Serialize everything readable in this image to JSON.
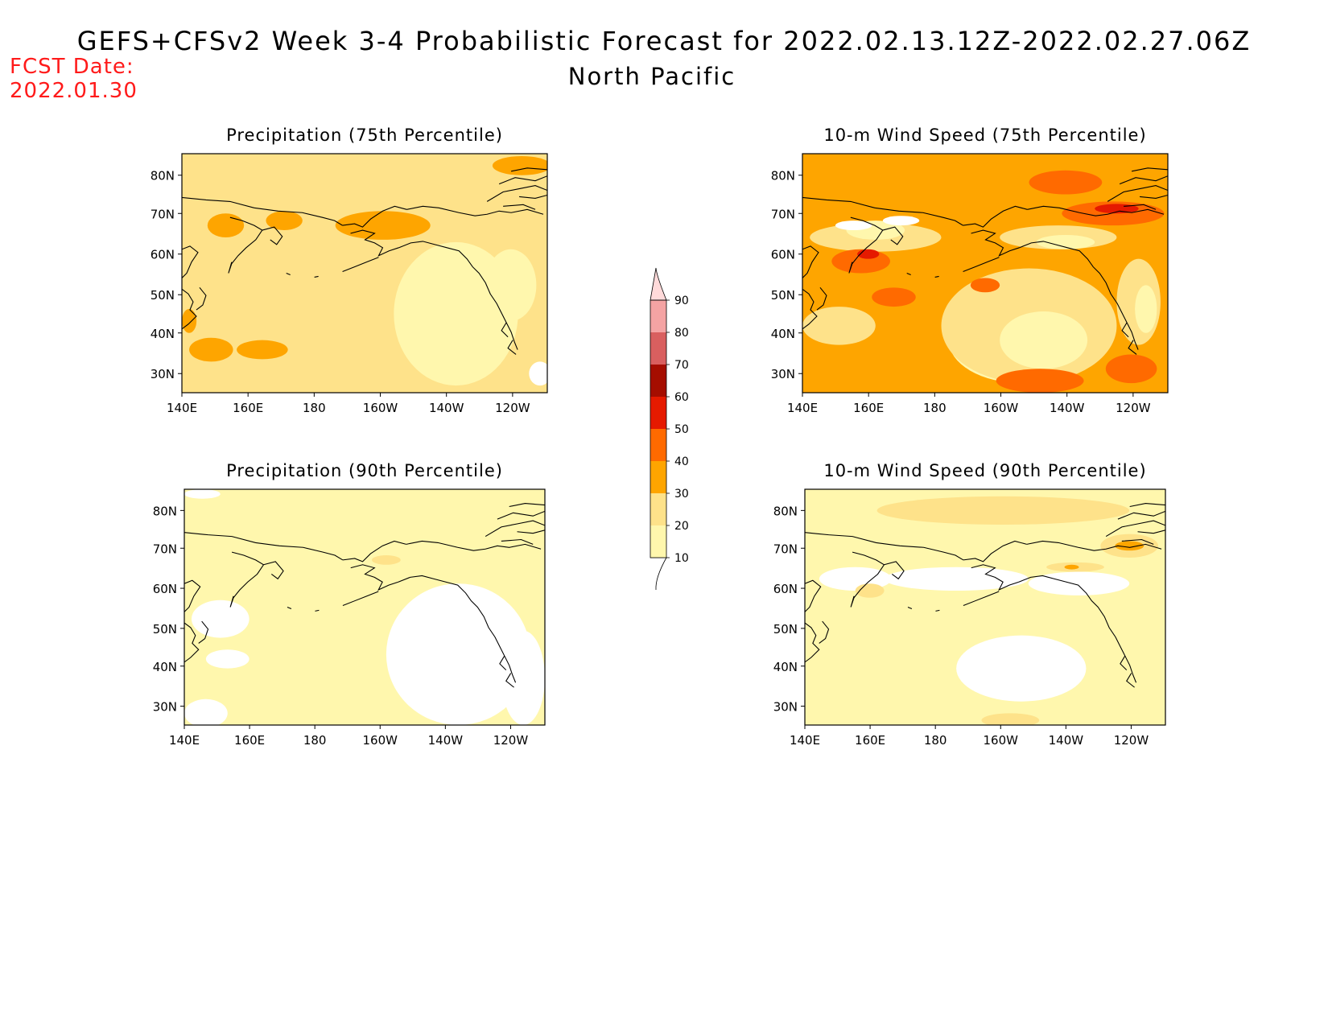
{
  "title": "GEFS+CFSv2 Week 3-4 Probabilistic Forecast for 2022.02.13.12Z-2022.02.27.06Z",
  "subtitle": "North Pacific",
  "fcst_date": {
    "label": "FCST Date:",
    "value": "2022.01.30"
  },
  "axes": {
    "lat_ticks": [
      "80N",
      "70N",
      "60N",
      "50N",
      "40N",
      "30N"
    ],
    "lon_ticks": [
      "140E",
      "160E",
      "180",
      "160W",
      "140W",
      "120W"
    ]
  },
  "colorbar": {
    "levels": [
      "10",
      "20",
      "30",
      "40",
      "50",
      "60",
      "70",
      "80",
      "90"
    ],
    "colors": [
      "#fff7ad",
      "#fee28a",
      "#fea500",
      "#ff6a00",
      "#e51a00",
      "#a50d00",
      "#d95f5f",
      "#f4a3a3",
      "#ffdada"
    ]
  },
  "panels": [
    {
      "id": "precip-75",
      "title": "Precipitation (75th Percentile)"
    },
    {
      "id": "wind-75",
      "title": "10-m Wind Speed (75th Percentile)"
    },
    {
      "id": "precip-90",
      "title": "Precipitation (90th Percentile)"
    },
    {
      "id": "wind-90",
      "title": "10-m Wind Speed (90th Percentile)"
    }
  ]
}
